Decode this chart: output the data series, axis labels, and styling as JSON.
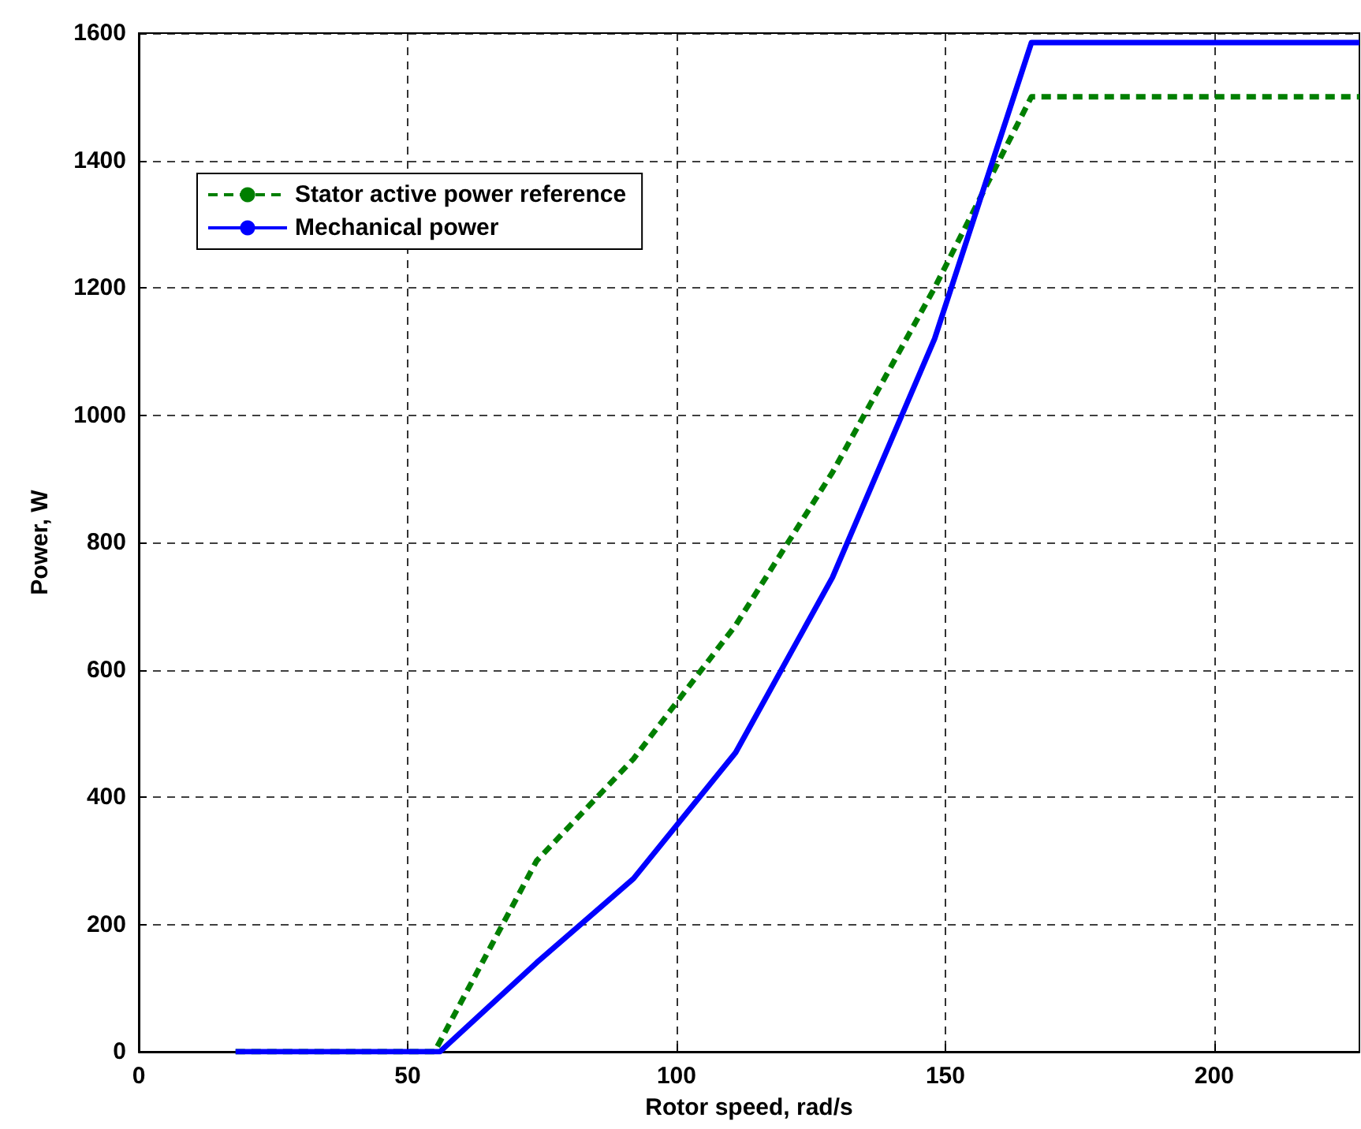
{
  "chart_data": {
    "type": "line",
    "xlabel": "Rotor speed, rad/s",
    "ylabel": "Power, W",
    "xlim": [
      0,
      227
    ],
    "xticks": [
      0,
      50,
      100,
      150,
      200
    ],
    "ylim": [
      0,
      1600
    ],
    "yticks": [
      0,
      200,
      400,
      600,
      800,
      1000,
      1200,
      1400,
      1600
    ],
    "grid": true,
    "legend": "top left",
    "marker": "none",
    "series": [
      {
        "name": "Stator active power reference",
        "color": "#007f00",
        "line_style": "dashed",
        "x": [
          18,
          55,
          74,
          92,
          111,
          129,
          148,
          166,
          227
        ],
        "values": [
          0,
          0,
          300,
          460,
          670,
          910,
          1200,
          1500,
          1500
        ]
      },
      {
        "name": "Mechanical power",
        "color": "#0000ff",
        "line_style": "solid",
        "x": [
          18,
          56,
          74,
          92,
          111,
          129,
          148,
          166,
          227
        ],
        "values": [
          0,
          0,
          140,
          272,
          470,
          745,
          1120,
          1585,
          1585
        ]
      }
    ]
  }
}
